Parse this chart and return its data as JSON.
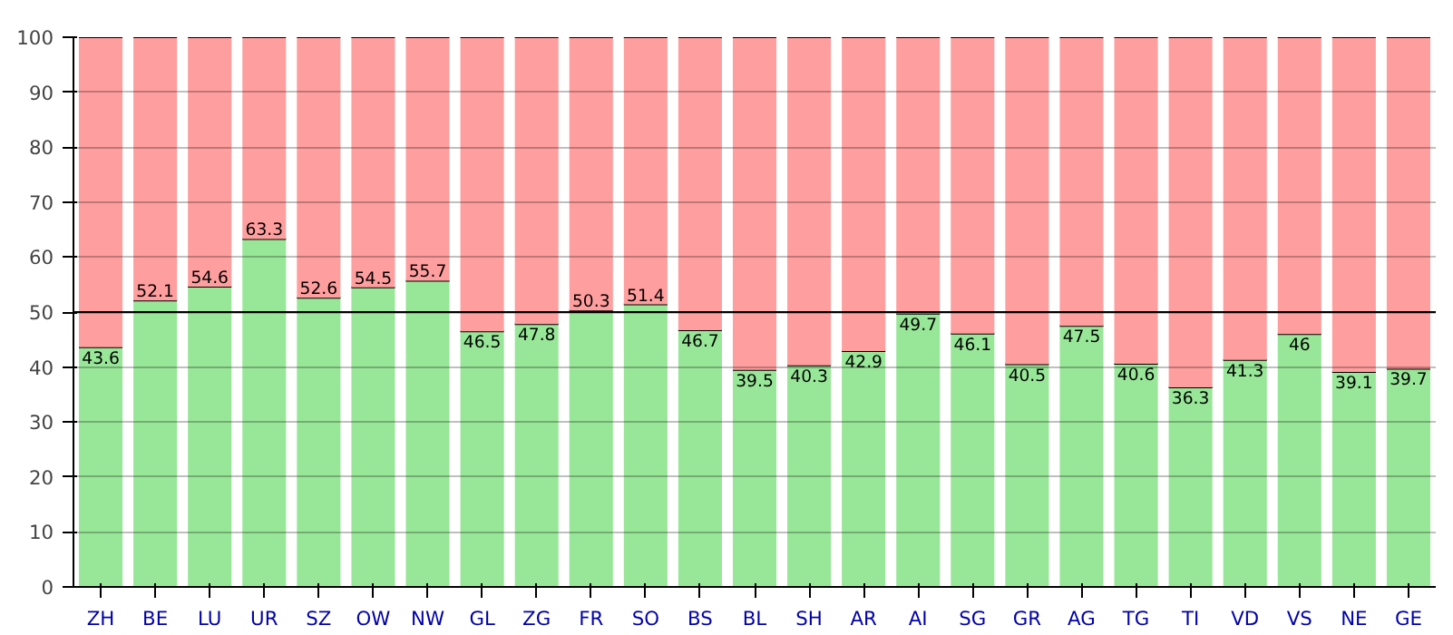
{
  "chart_data": {
    "type": "bar",
    "stacked": true,
    "categories": [
      "ZH",
      "BE",
      "LU",
      "UR",
      "SZ",
      "OW",
      "NW",
      "GL",
      "ZG",
      "FR",
      "SO",
      "BS",
      "BL",
      "SH",
      "AR",
      "AI",
      "SG",
      "GR",
      "AG",
      "TG",
      "TI",
      "VD",
      "VS",
      "NE",
      "GE"
    ],
    "series": [
      {
        "color": "#98e698",
        "values": [
          43.6,
          52.1,
          54.6,
          63.3,
          52.6,
          54.5,
          55.7,
          46.5,
          47.8,
          50.3,
          51.4,
          46.7,
          39.5,
          40.3,
          42.9,
          49.7,
          46.1,
          40.5,
          47.5,
          40.6,
          36.3,
          41.3,
          46,
          39.1,
          39.7
        ],
        "value_labels": [
          "43.6",
          "52.1",
          "54.6",
          "63.3",
          "52.6",
          "54.5",
          "55.7",
          "46.5",
          "47.8",
          "50.3",
          "51.4",
          "46.7",
          "39.5",
          "40.3",
          "42.9",
          "49.7",
          "46.1",
          "40.5",
          "47.5",
          "40.6",
          "36.3",
          "41.3",
          "46",
          "39.1",
          "39.7"
        ]
      },
      {
        "color": "#ff9e9e",
        "values": [
          56.4,
          47.9,
          45.4,
          36.7,
          47.4,
          45.5,
          44.3,
          53.5,
          52.2,
          49.7,
          48.6,
          53.3,
          60.5,
          59.7,
          57.1,
          50.3,
          53.9,
          59.5,
          52.5,
          59.4,
          63.7,
          58.7,
          54,
          60.9,
          60.3
        ]
      }
    ],
    "ylim": [
      0,
      100
    ],
    "yticks": [
      0,
      10,
      20,
      30,
      40,
      50,
      60,
      70,
      80,
      90,
      100
    ],
    "grid": "y",
    "ref_lines": [
      {
        "axis": "y",
        "value": 50,
        "color": "#000000"
      }
    ]
  }
}
